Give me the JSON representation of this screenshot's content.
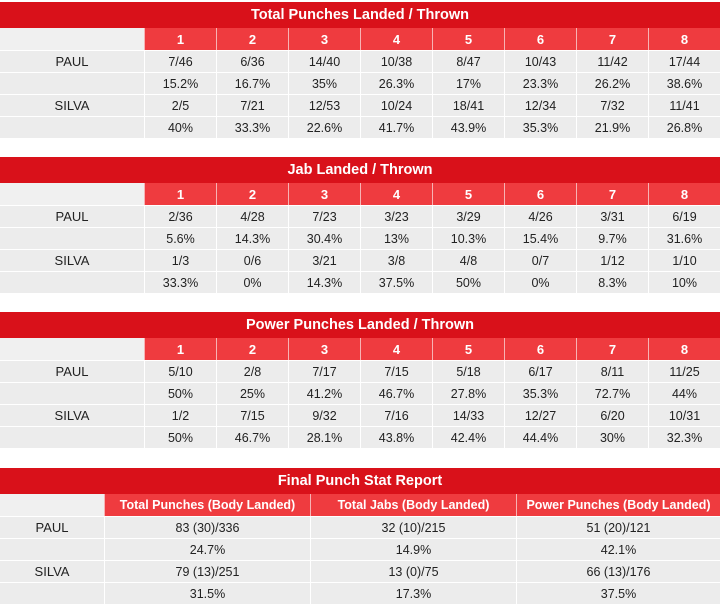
{
  "colors": {
    "title_bg": "#d9111a",
    "header_bg": "#ef3b3f",
    "cell_bg": "#ececec"
  },
  "rounds": [
    "1",
    "2",
    "3",
    "4",
    "5",
    "6",
    "7",
    "8"
  ],
  "tables": [
    {
      "title": "Total Punches Landed / Thrown",
      "rows": [
        {
          "name": "PAUL",
          "landed": [
            "7/46",
            "6/36",
            "14/40",
            "10/38",
            "8/47",
            "10/43",
            "11/42",
            "17/44"
          ],
          "pct": [
            "15.2%",
            "16.7%",
            "35%",
            "26.3%",
            "17%",
            "23.3%",
            "26.2%",
            "38.6%"
          ]
        },
        {
          "name": "SILVA",
          "landed": [
            "2/5",
            "7/21",
            "12/53",
            "10/24",
            "18/41",
            "12/34",
            "7/32",
            "11/41"
          ],
          "pct": [
            "40%",
            "33.3%",
            "22.6%",
            "41.7%",
            "43.9%",
            "35.3%",
            "21.9%",
            "26.8%"
          ]
        }
      ]
    },
    {
      "title": "Jab Landed / Thrown",
      "rows": [
        {
          "name": "PAUL",
          "landed": [
            "2/36",
            "4/28",
            "7/23",
            "3/23",
            "3/29",
            "4/26",
            "3/31",
            "6/19"
          ],
          "pct": [
            "5.6%",
            "14.3%",
            "30.4%",
            "13%",
            "10.3%",
            "15.4%",
            "9.7%",
            "31.6%"
          ]
        },
        {
          "name": "SILVA",
          "landed": [
            "1/3",
            "0/6",
            "3/21",
            "3/8",
            "4/8",
            "0/7",
            "1/12",
            "1/10"
          ],
          "pct": [
            "33.3%",
            "0%",
            "14.3%",
            "37.5%",
            "50%",
            "0%",
            "8.3%",
            "10%"
          ]
        }
      ]
    },
    {
      "title": "Power Punches Landed / Thrown",
      "rows": [
        {
          "name": "PAUL",
          "landed": [
            "5/10",
            "2/8",
            "7/17",
            "7/15",
            "5/18",
            "6/17",
            "8/11",
            "11/25"
          ],
          "pct": [
            "50%",
            "25%",
            "41.2%",
            "46.7%",
            "27.8%",
            "35.3%",
            "72.7%",
            "44%"
          ]
        },
        {
          "name": "SILVA",
          "landed": [
            "1/2",
            "7/15",
            "9/32",
            "7/16",
            "14/33",
            "12/27",
            "6/20",
            "10/31"
          ],
          "pct": [
            "50%",
            "46.7%",
            "28.1%",
            "43.8%",
            "42.4%",
            "44.4%",
            "30%",
            "32.3%"
          ]
        }
      ]
    }
  ],
  "final": {
    "title": "Final Punch Stat Report",
    "headers": [
      "Total Punches (Body Landed)",
      "Total Jabs (Body Landed)",
      "Power Punches (Body Landed)"
    ],
    "rows": [
      {
        "name": "PAUL",
        "values": [
          "83 (30)/336",
          "32 (10)/215",
          "51 (20)/121"
        ],
        "pct": [
          "24.7%",
          "14.9%",
          "42.1%"
        ]
      },
      {
        "name": "SILVA",
        "values": [
          "79 (13)/251",
          "13 (0)/75",
          "66 (13)/176"
        ],
        "pct": [
          "31.5%",
          "17.3%",
          "37.5%"
        ]
      }
    ]
  }
}
